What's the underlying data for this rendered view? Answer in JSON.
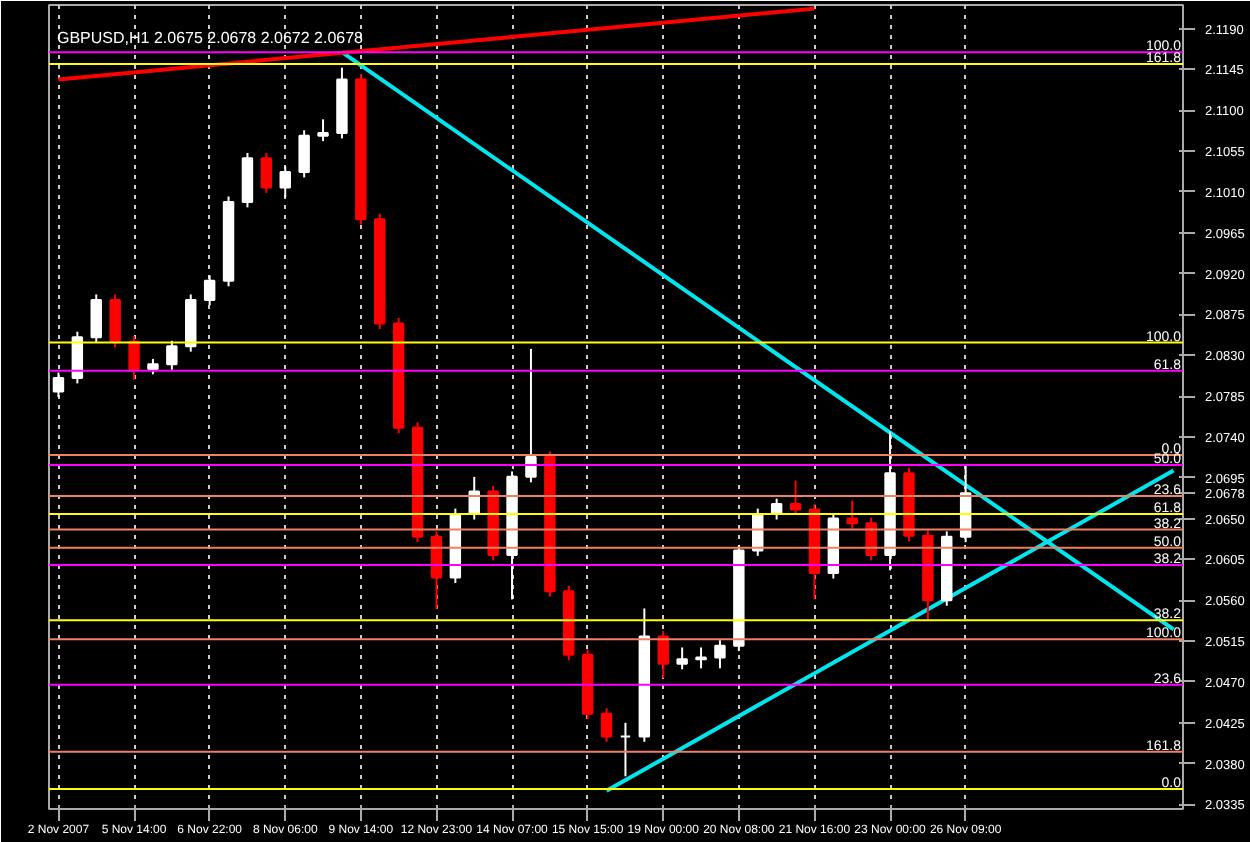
{
  "chart_data": {
    "type": "candlestick",
    "title": "GBPUSD,H1  2.0675 2.0678 2.0672 2.0678",
    "categories": [
      "2 Nov 2007",
      null,
      null,
      null,
      "5 Nov 14:00",
      null,
      null,
      null,
      "6 Nov 22:00",
      null,
      null,
      null,
      "8 Nov 06:00",
      null,
      null,
      null,
      "9 Nov 14:00",
      null,
      null,
      null,
      "12 Nov 23:00",
      null,
      null,
      null,
      "14 Nov 07:00",
      null,
      null,
      null,
      "15 Nov 15:00",
      null,
      null,
      null,
      "19 Nov 00:00",
      null,
      null,
      null,
      "20 Nov 08:00",
      null,
      null,
      null,
      "21 Nov 16:00",
      null,
      null,
      null,
      "23 Nov 00:00",
      null,
      null,
      null,
      "26 Nov 09:00",
      null,
      null,
      null,
      null,
      null,
      null,
      null,
      null,
      null,
      null,
      null
    ],
    "ohlc": [
      [
        2.079,
        2.0811,
        2.0784,
        2.0805
      ],
      [
        2.0805,
        2.0856,
        2.0799,
        2.085
      ],
      [
        2.085,
        2.0897,
        2.0844,
        2.0891
      ],
      [
        2.0891,
        2.0897,
        2.0839,
        2.0845
      ],
      [
        2.0845,
        2.0851,
        2.0803,
        2.0815
      ],
      [
        2.0815,
        2.0826,
        2.0809,
        2.082
      ],
      [
        2.082,
        2.0846,
        2.0814,
        2.084
      ],
      [
        2.084,
        2.0897,
        2.0834,
        2.0891
      ],
      [
        2.0891,
        2.0918,
        2.0885,
        2.0912
      ],
      [
        2.0912,
        2.1005,
        2.0906,
        2.0999
      ],
      [
        2.0999,
        2.1053,
        2.0993,
        2.1047
      ],
      [
        2.1047,
        2.1053,
        2.1009,
        2.1015
      ],
      [
        2.1015,
        2.1038,
        2.1004,
        2.1032
      ],
      [
        2.1032,
        2.1078,
        2.1026,
        2.1072
      ],
      [
        2.1072,
        2.109,
        2.1066,
        2.1075
      ],
      [
        2.1075,
        2.1147,
        2.1069,
        2.1134
      ],
      [
        2.1134,
        2.114,
        2.0974,
        2.098
      ],
      [
        2.098,
        2.0986,
        2.0859,
        2.0865
      ],
      [
        2.0865,
        2.0871,
        2.0744,
        2.075
      ],
      [
        2.075,
        2.0756,
        2.0624,
        2.063
      ],
      [
        2.063,
        2.0636,
        2.055,
        2.0585
      ],
      [
        2.0585,
        2.0661,
        2.0579,
        2.0655
      ],
      [
        2.0655,
        2.0696,
        2.0649,
        2.068
      ],
      [
        2.068,
        2.0686,
        2.0604,
        2.061
      ],
      [
        2.061,
        2.0702,
        2.0561,
        2.0696
      ],
      [
        2.0696,
        2.0837,
        2.069,
        2.0718
      ],
      [
        2.0718,
        2.0724,
        2.0564,
        2.057
      ],
      [
        2.057,
        2.0576,
        2.0494,
        2.05
      ],
      [
        2.05,
        2.0506,
        2.0429,
        2.0435
      ],
      [
        2.0435,
        2.0441,
        2.0404,
        2.041
      ],
      [
        2.041,
        2.0425,
        2.0366,
        2.041
      ],
      [
        2.041,
        2.0551,
        2.0404,
        2.052
      ],
      [
        2.052,
        2.0526,
        2.0474,
        2.049
      ],
      [
        2.049,
        2.0508,
        2.0484,
        2.0495
      ],
      [
        2.0495,
        2.0508,
        2.0485,
        2.0497
      ],
      [
        2.0497,
        2.0516,
        2.0485,
        2.051
      ],
      [
        2.051,
        2.0621,
        2.0504,
        2.0615
      ],
      [
        2.0615,
        2.0661,
        2.0609,
        2.0655
      ],
      [
        2.0655,
        2.0672,
        2.0649,
        2.0666
      ],
      [
        2.0666,
        2.0692,
        2.0654,
        2.066
      ],
      [
        2.066,
        2.0666,
        2.0561,
        2.059
      ],
      [
        2.059,
        2.0656,
        2.0584,
        2.065
      ],
      [
        2.065,
        2.067,
        2.0639,
        2.0645
      ],
      [
        2.0645,
        2.0651,
        2.0604,
        2.061
      ],
      [
        2.061,
        2.0746,
        2.0593,
        2.07
      ],
      [
        2.07,
        2.0706,
        2.0625,
        2.0631
      ],
      [
        2.0631,
        2.0637,
        2.0539,
        2.056
      ],
      [
        2.056,
        2.0636,
        2.0554,
        2.063
      ],
      [
        2.063,
        2.0709,
        2.0624,
        2.0678
      ],
      null,
      null,
      null,
      null,
      null,
      null,
      null,
      null,
      null,
      null,
      null
    ],
    "series": [
      {
        "type": "line",
        "color": "#00e5ee",
        "values": [
          null,
          null,
          null,
          null,
          null,
          null,
          null,
          null,
          null,
          null,
          null,
          null,
          null,
          null,
          null,
          2.1164,
          null,
          null,
          null,
          null,
          null,
          null,
          null,
          null,
          null,
          null,
          null,
          null,
          null,
          null,
          null,
          null,
          null,
          null,
          null,
          null,
          null,
          null,
          null,
          null,
          null,
          null,
          null,
          null,
          null,
          null,
          null,
          null,
          null,
          null,
          null,
          null,
          null,
          null,
          null,
          null,
          null,
          null,
          null,
          2.0528
        ]
      },
      {
        "type": "line",
        "color": "#00e5ee",
        "values": [
          null,
          null,
          null,
          null,
          null,
          null,
          null,
          null,
          null,
          null,
          null,
          null,
          null,
          null,
          null,
          null,
          null,
          null,
          null,
          null,
          null,
          null,
          null,
          null,
          null,
          null,
          null,
          null,
          null,
          2.035,
          null,
          null,
          null,
          null,
          null,
          null,
          null,
          null,
          null,
          null,
          null,
          null,
          null,
          null,
          null,
          null,
          null,
          null,
          null,
          null,
          null,
          null,
          null,
          null,
          null,
          null,
          null,
          null,
          null,
          2.0703
        ]
      },
      {
        "type": "line",
        "color": "#ff0000",
        "values": [
          2.1134,
          null,
          null,
          null,
          null,
          null,
          null,
          null,
          null,
          null,
          null,
          null,
          null,
          null,
          null,
          null,
          null,
          null,
          null,
          null,
          null,
          null,
          null,
          null,
          null,
          null,
          null,
          null,
          null,
          null,
          null,
          null,
          null,
          null,
          null,
          null,
          null,
          null,
          null,
          null,
          2.1212,
          null,
          null,
          null,
          null,
          null,
          null,
          null,
          null,
          null,
          null,
          null,
          null,
          null,
          null,
          null,
          null,
          null,
          null,
          null
        ]
      }
    ],
    "ylim": [
      2.033,
      2.1216
    ],
    "yticks": [
      {
        "value": 2.119,
        "label": "2.1190"
      },
      {
        "value": 2.1145,
        "label": "2.1145"
      },
      {
        "value": 2.11,
        "label": "2.1100"
      },
      {
        "value": 2.1055,
        "label": "2.1055"
      },
      {
        "value": 2.101,
        "label": "2.1010"
      },
      {
        "value": 2.0965,
        "label": "2.0965"
      },
      {
        "value": 2.092,
        "label": "2.0920"
      },
      {
        "value": 2.0875,
        "label": "2.0875"
      },
      {
        "value": 2.083,
        "label": "2.0830"
      },
      {
        "value": 2.0785,
        "label": "2.0785"
      },
      {
        "value": 2.074,
        "label": "2.0740"
      },
      {
        "value": 2.0695,
        "label": "2.0695"
      },
      {
        "value": 2.0678,
        "label": "2.0678"
      },
      {
        "value": 2.065,
        "label": "2.0650"
      },
      {
        "value": 2.0605,
        "label": "2.0605"
      },
      {
        "value": 2.056,
        "label": "2.0560"
      },
      {
        "value": 2.0515,
        "label": "2.0515"
      },
      {
        "value": 2.047,
        "label": "2.0470"
      },
      {
        "value": 2.0425,
        "label": "2.0425"
      },
      {
        "value": 2.038,
        "label": "2.0380"
      },
      {
        "value": 2.0335,
        "label": "2.0335"
      }
    ],
    "grid": "x",
    "ref_lines": [
      {
        "axis": "y",
        "value": 2.1164,
        "color": "#ff00ff"
      },
      {
        "axis": "y",
        "value": 2.1151,
        "color": "#ffff00"
      },
      {
        "axis": "y",
        "value": 2.0844,
        "color": "#ffff00"
      },
      {
        "axis": "y",
        "value": 2.0813,
        "color": "#ff00ff"
      },
      {
        "axis": "y",
        "value": 2.072,
        "color": "#f08060"
      },
      {
        "axis": "y",
        "value": 2.0709,
        "color": "#ff00ff"
      },
      {
        "axis": "y",
        "value": 2.0675,
        "color": "#f08060"
      },
      {
        "axis": "y",
        "value": 2.0655,
        "color": "#ffff00"
      },
      {
        "axis": "y",
        "value": 2.0638,
        "color": "#f08060"
      },
      {
        "axis": "y",
        "value": 2.0618,
        "color": "#f08060"
      },
      {
        "axis": "y",
        "value": 2.0599,
        "color": "#ff00ff"
      },
      {
        "axis": "y",
        "value": 2.0538,
        "color": "#ffff00"
      },
      {
        "axis": "y",
        "value": 2.0517,
        "color": "#f08060"
      },
      {
        "axis": "y",
        "value": 2.0467,
        "color": "#ff00ff"
      },
      {
        "axis": "y",
        "value": 2.0393,
        "color": "#f08060"
      },
      {
        "axis": "y",
        "value": 2.0352,
        "color": "#ffff00"
      }
    ],
    "annotations": [
      {
        "text": "100.0",
        "y": 2.1164
      },
      {
        "text": "161.8",
        "y": 2.1151
      },
      {
        "text": "100.0",
        "y": 2.0844
      },
      {
        "text": "61.8",
        "y": 2.0813
      },
      {
        "text": "0.0",
        "y": 2.072
      },
      {
        "text": "50.0",
        "y": 2.0709
      },
      {
        "text": "23.6",
        "y": 2.0675
      },
      {
        "text": "61.8",
        "y": 2.0655
      },
      {
        "text": "38.2",
        "y": 2.0638
      },
      {
        "text": "50.0",
        "y": 2.0618
      },
      {
        "text": "38.2",
        "y": 2.0599
      },
      {
        "text": "38.2",
        "y": 2.0538
      },
      {
        "text": "100.0",
        "y": 2.0517
      },
      {
        "text": "23.6",
        "y": 2.0467
      },
      {
        "text": "161.8",
        "y": 2.0393
      },
      {
        "text": "0.0",
        "y": 2.0352
      }
    ]
  }
}
